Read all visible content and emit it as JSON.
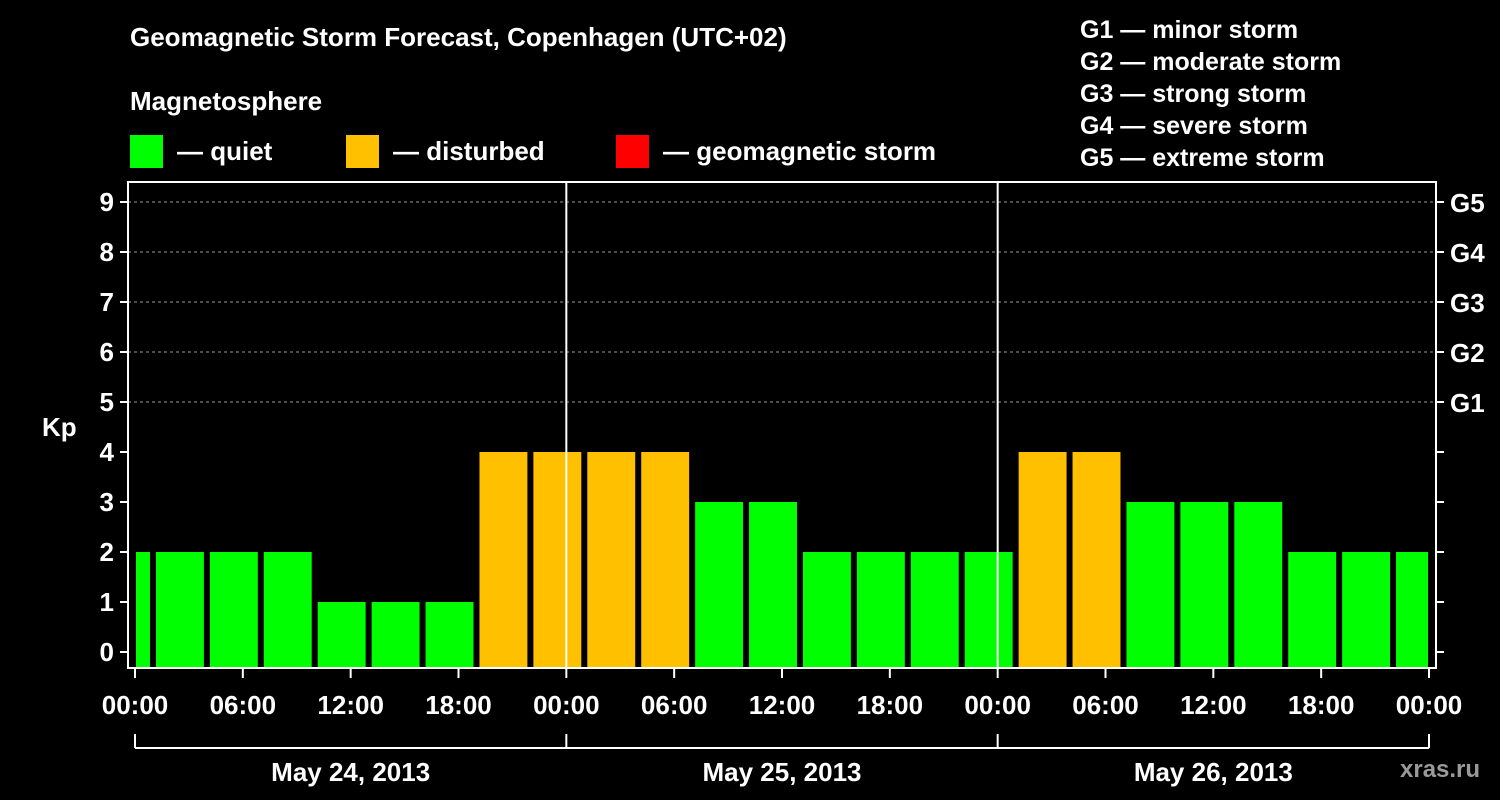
{
  "title": "Geomagnetic Storm Forecast, Copenhagen (UTC+02)",
  "magnetosphere": {
    "heading": "Magnetosphere",
    "legend": [
      {
        "label": "— quiet",
        "color": "#00ff00"
      },
      {
        "label": "— disturbed",
        "color": "#ffc000"
      },
      {
        "label": "— geomagnetic storm",
        "color": "#ff0000"
      }
    ]
  },
  "storm_scale": [
    "G1 — minor storm",
    "G2 — moderate storm",
    "G3 — strong storm",
    "G4 — severe storm",
    "G5 — extreme storm"
  ],
  "watermark": "xras.ru",
  "chart_data": {
    "type": "bar",
    "ylabel": "Kp",
    "ylim": [
      0,
      9
    ],
    "yticks": [
      "0",
      "1",
      "2",
      "3",
      "4",
      "5",
      "6",
      "7",
      "8",
      "9"
    ],
    "right_ticks": [
      {
        "value": 5,
        "label": "G1"
      },
      {
        "value": 6,
        "label": "G2"
      },
      {
        "value": 7,
        "label": "G3"
      },
      {
        "value": 8,
        "label": "G4"
      },
      {
        "value": 9,
        "label": "G5"
      }
    ],
    "xticks": [
      "00:00",
      "06:00",
      "12:00",
      "18:00",
      "00:00",
      "06:00",
      "12:00",
      "18:00",
      "00:00",
      "06:00",
      "12:00",
      "18:00",
      "00:00"
    ],
    "days": [
      "May 24, 2013",
      "May 25, 2013",
      "May 26, 2013"
    ],
    "values": [
      2,
      2,
      2,
      2,
      1,
      1,
      1,
      4,
      4,
      4,
      4,
      3,
      3,
      2,
      2,
      2,
      2,
      4,
      4,
      3,
      3,
      3,
      2,
      2,
      2
    ],
    "status_colors": {
      "quiet": "#00ff00",
      "disturbed": "#ffc000",
      "storm": "#ff0000"
    },
    "grid": "dashed, Kp 5–9"
  }
}
